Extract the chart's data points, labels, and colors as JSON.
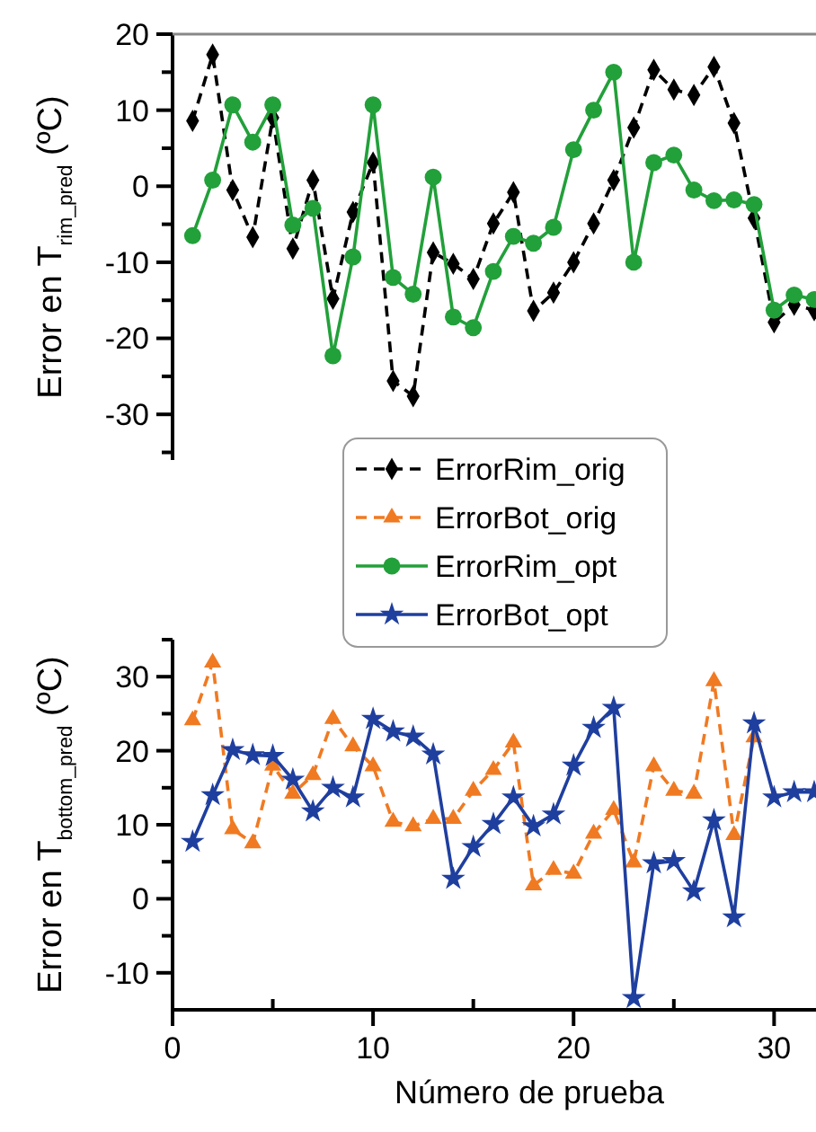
{
  "chart_data": [
    {
      "type": "line",
      "ylabel": "Error en T$_{rim_pred}$ (ºC)",
      "x": [
        1,
        2,
        3,
        4,
        5,
        6,
        7,
        8,
        9,
        10,
        11,
        12,
        13,
        14,
        15,
        16,
        17,
        18,
        19,
        20,
        21,
        22,
        23,
        24,
        25,
        26,
        27,
        28,
        29,
        30,
        31,
        32
      ],
      "xlim": [
        0,
        32
      ],
      "ylim": [
        -36,
        20
      ],
      "yticks": [
        20,
        {
          "value": 15,
          "label": null
        },
        10,
        {
          "value": 5,
          "label": null
        },
        0,
        {
          "value": -5,
          "label": null
        },
        -10,
        {
          "value": -15,
          "label": null
        },
        -20,
        {
          "value": -25,
          "label": null
        },
        -30,
        {
          "value": -35,
          "label": null
        }
      ],
      "tick_labels": "y",
      "legend": "bottom",
      "series": [
        {
          "name": "ErrorRim_orig",
          "color": "#000000",
          "marker": "diamond",
          "line_style": "dashed",
          "values": [
            8.6,
            17.3,
            -0.5,
            -6.7,
            9,
            -8.2,
            0.8,
            -14.8,
            -3.4,
            3.1,
            -25.6,
            -27.6,
            -8.7,
            -10.2,
            -12.2,
            -4.9,
            -0.8,
            -16.4,
            -14,
            -10,
            -4.9,
            0.8,
            7.7,
            15.3,
            12.7,
            12,
            15.7,
            8.3,
            -4.2,
            -17.9,
            -15.6,
            -16.3
          ]
        },
        {
          "name": "ErrorRim_opt",
          "color": "#22a03a",
          "marker": "circle",
          "line_style": "solid",
          "values": [
            -6.5,
            0.8,
            10.7,
            5.8,
            10.7,
            -5.1,
            -2.9,
            -22.3,
            -9.3,
            10.7,
            -12,
            -14.2,
            1.2,
            -17.2,
            -18.6,
            -11.2,
            -6.6,
            -7.5,
            -5.4,
            4.8,
            10,
            15,
            -10,
            3.1,
            4.1,
            -0.5,
            -1.9,
            -1.8,
            -2.4,
            -16.3,
            -14.3,
            -14.9
          ]
        }
      ]
    },
    {
      "type": "line",
      "ylabel": "Error en T$_{bottom_pred}$ (ºC)",
      "xlabel": "Número de prueba",
      "x": [
        1,
        2,
        3,
        4,
        5,
        6,
        7,
        8,
        9,
        10,
        11,
        12,
        13,
        14,
        15,
        16,
        17,
        18,
        19,
        20,
        21,
        22,
        23,
        24,
        25,
        26,
        27,
        28,
        29,
        30,
        31,
        32
      ],
      "xlim": [
        0,
        32
      ],
      "xticks": [
        0,
        {
          "value": 5,
          "label": null
        },
        10,
        {
          "value": 15,
          "label": null
        },
        20,
        {
          "value": 25,
          "label": null
        },
        30
      ],
      "ylim": [
        -15,
        35
      ],
      "yticks": [
        {
          "value": 35,
          "label": null
        },
        30,
        {
          "value": 25,
          "label": null
        },
        20,
        {
          "value": 15,
          "label": null
        },
        10,
        {
          "value": 5,
          "label": null
        },
        0,
        {
          "value": -5,
          "label": null
        },
        -10
      ],
      "legend": "top",
      "series": [
        {
          "name": "ErrorBot_orig",
          "color": "#f07a22",
          "marker": "triangle",
          "line_style": "dashed",
          "values": [
            24.1,
            31.9,
            9.4,
            7.5,
            18,
            14.2,
            16.7,
            24.3,
            20.6,
            17.9,
            10.4,
            9.8,
            10.8,
            10.8,
            14.6,
            17.4,
            21.1,
            1.8,
            3.9,
            3.4,
            8.8,
            12,
            4.9,
            17.9,
            14.6,
            14.2,
            29.4,
            8.6,
            21.8,
            null,
            null,
            null
          ]
        },
        {
          "name": "ErrorBot_opt",
          "color": "#1f3f9f",
          "marker": "star",
          "line_style": "solid",
          "values": [
            7.7,
            14,
            20.1,
            19.4,
            19.3,
            16.1,
            11.8,
            15,
            13.7,
            24.3,
            22.6,
            21.9,
            19.5,
            2.7,
            7,
            10.1,
            13.7,
            9.8,
            11.4,
            18,
            23.1,
            25.8,
            -13.4,
            4.8,
            5.1,
            1,
            10.6,
            -2.5,
            23.7,
            13.7,
            14.4,
            14.4
          ]
        }
      ]
    }
  ]
}
